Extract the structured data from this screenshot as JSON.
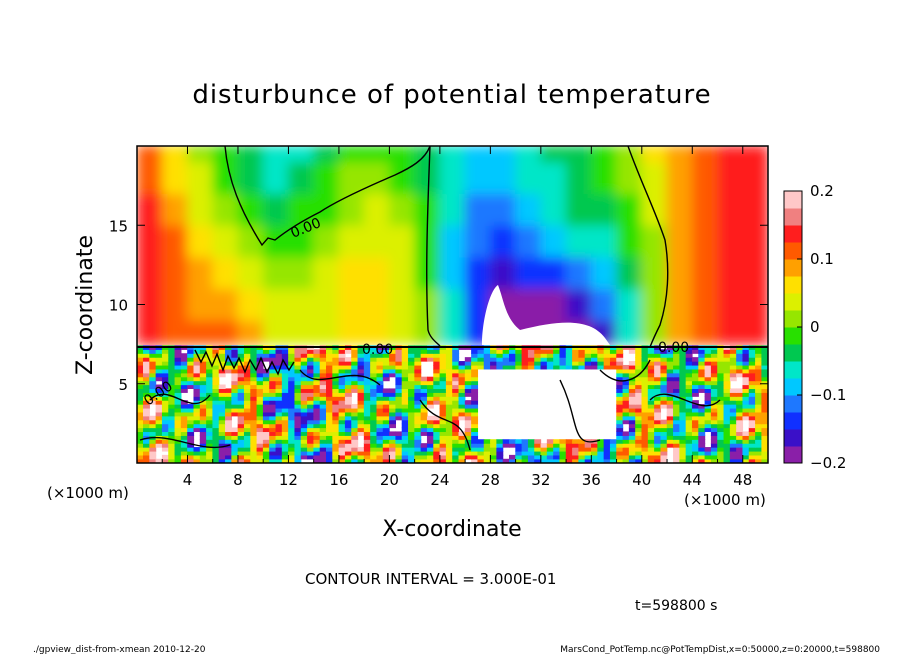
{
  "chart_data": {
    "type": "heatmap",
    "title": "disturbunce of potential temperature",
    "xlabel": "X-coordinate",
    "ylabel": "Z-coordinate",
    "x_unit_left": "(×1000 m)",
    "x_unit_right": "(×1000 m)",
    "xlim": [
      0,
      50
    ],
    "ylim": [
      0,
      20
    ],
    "x_ticks": [
      "4",
      "8",
      "12",
      "16",
      "20",
      "24",
      "28",
      "32",
      "36",
      "40",
      "44",
      "48"
    ],
    "x_tick_values": [
      4,
      8,
      12,
      16,
      20,
      24,
      28,
      32,
      36,
      40,
      44,
      48
    ],
    "y_ticks": [
      "5",
      "10",
      "15"
    ],
    "y_tick_values": [
      5,
      10,
      15
    ],
    "colorbar": {
      "min": -0.2,
      "max": 0.2,
      "tick_labels": [
        "0.2",
        "0.1",
        "0",
        "−0.1",
        "−0.2"
      ],
      "tick_values": [
        0.2,
        0.1,
        0,
        -0.1,
        -0.2
      ],
      "colors": [
        "#8a1fa8",
        "#3a10c8",
        "#1030ff",
        "#1e78ff",
        "#00c8ff",
        "#00e6c8",
        "#00c850",
        "#28e000",
        "#96e600",
        "#dcf000",
        "#ffe000",
        "#ffa000",
        "#ff5a00",
        "#ff1e1e",
        "#f08080",
        "#ffc8c8"
      ]
    },
    "contour_labels": [
      "0.00",
      "0.00",
      "0.00",
      "0.00"
    ],
    "contour_interval_text": "CONTOUR INTERVAL = 3.000E-01",
    "time_text": "t=598800 s",
    "footer_left": "./gpview_dist-from-xmean  2010-12-20",
    "footer_right": "MarsCond_PotTemp.nc@PotTempDist,x=0:50000,z=0:20000,t=598800",
    "field_upper": {
      "x": [
        0,
        2,
        4,
        6,
        8,
        10,
        12,
        14,
        16,
        18,
        20,
        22,
        24,
        26,
        28,
        30,
        32,
        34,
        36,
        38,
        40,
        42,
        44,
        46,
        48,
        50
      ],
      "z": [
        7.5,
        9,
        11,
        13,
        15,
        17,
        19,
        20
      ],
      "values": [
        [
          0.14,
          0.12,
          0.11,
          0.13,
          0.14,
          0.08,
          0.03,
          0.03,
          0.05,
          0.06,
          0.06,
          0.03,
          -0.02,
          -0.08,
          -0.2,
          -0.25,
          -0.25,
          -0.23,
          -0.2,
          -0.12,
          -0.02,
          0.05,
          0.1,
          0.13,
          0.14,
          0.15
        ],
        [
          0.14,
          0.12,
          0.1,
          0.1,
          0.08,
          0.05,
          0.03,
          0.03,
          0.05,
          0.07,
          0.07,
          0.03,
          -0.03,
          -0.1,
          -0.2,
          -0.25,
          -0.23,
          -0.21,
          -0.17,
          -0.12,
          -0.02,
          0.05,
          0.1,
          0.13,
          0.14,
          0.15
        ],
        [
          0.15,
          0.13,
          0.1,
          0.07,
          0.05,
          0.03,
          0.02,
          0.03,
          0.05,
          0.07,
          0.06,
          0.03,
          -0.03,
          -0.12,
          -0.17,
          -0.18,
          -0.15,
          -0.14,
          -0.12,
          -0.08,
          -0.02,
          0.05,
          0.1,
          0.13,
          0.14,
          0.15
        ],
        [
          0.15,
          0.13,
          0.09,
          0.05,
          0.03,
          0.01,
          -0.01,
          0.01,
          0.03,
          0.05,
          0.05,
          0.02,
          -0.04,
          -0.12,
          -0.14,
          -0.14,
          -0.12,
          -0.1,
          -0.08,
          -0.05,
          -0.01,
          0.05,
          0.1,
          0.13,
          0.14,
          0.15
        ],
        [
          0.15,
          0.12,
          0.07,
          0.03,
          0.0,
          -0.02,
          -0.02,
          0.0,
          0.02,
          0.04,
          0.03,
          0.01,
          -0.05,
          -0.1,
          -0.12,
          -0.11,
          -0.09,
          -0.07,
          -0.05,
          -0.03,
          0.0,
          0.05,
          0.1,
          0.13,
          0.14,
          0.15
        ],
        [
          0.14,
          0.1,
          0.05,
          0.01,
          -0.02,
          -0.04,
          -0.04,
          -0.03,
          0.0,
          0.02,
          0.02,
          -0.01,
          -0.05,
          -0.09,
          -0.1,
          -0.09,
          -0.07,
          -0.05,
          -0.03,
          -0.01,
          0.02,
          0.06,
          0.1,
          0.13,
          0.14,
          0.15
        ],
        [
          0.13,
          0.09,
          0.04,
          0.0,
          -0.03,
          -0.06,
          -0.07,
          -0.05,
          -0.02,
          0.0,
          0.0,
          -0.02,
          -0.05,
          -0.08,
          -0.09,
          -0.08,
          -0.06,
          -0.04,
          -0.02,
          0.0,
          0.03,
          0.07,
          0.1,
          0.13,
          0.14,
          0.15
        ],
        [
          0.13,
          0.09,
          0.04,
          0.0,
          -0.03,
          -0.06,
          -0.07,
          -0.06,
          -0.03,
          -0.01,
          0.0,
          -0.02,
          -0.05,
          -0.08,
          -0.09,
          -0.08,
          -0.06,
          -0.04,
          -0.02,
          0.0,
          0.03,
          0.07,
          0.1,
          0.13,
          0.14,
          0.15
        ]
      ]
    }
  }
}
